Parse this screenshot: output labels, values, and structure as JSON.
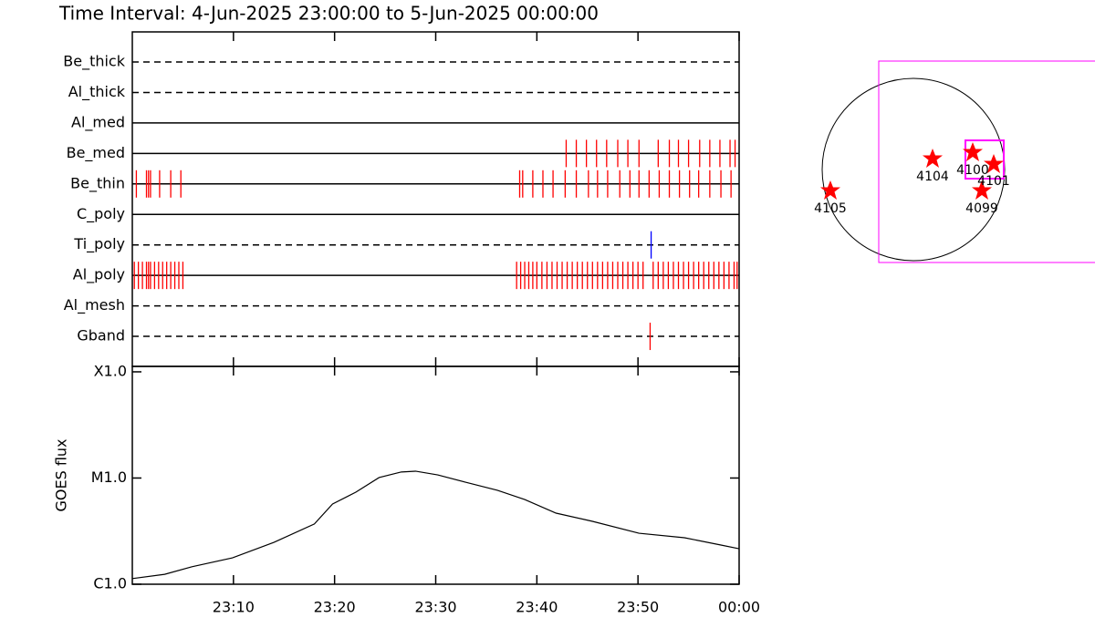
{
  "chart_data": [
    {
      "type": "timeline",
      "title": "Time Interval:  4-Jun-2025 23:00:00 to  5-Jun-2025 00:00:00",
      "xlim": [
        0,
        60
      ],
      "rows": [
        {
          "name": "Be_thick",
          "line": "dashed",
          "color": "#ff0000",
          "events": []
        },
        {
          "name": "Al_thick",
          "line": "dashed",
          "color": "#ff0000",
          "events": []
        },
        {
          "name": "Al_med",
          "line": "solid",
          "color": "#ff0000",
          "events": []
        },
        {
          "name": "Be_med",
          "line": "solid",
          "color": "#ff0000",
          "events": [
            42.9,
            43.9,
            44.9,
            45.9,
            46.9,
            48.0,
            49.0,
            50.1,
            52.0,
            53.1,
            54.0,
            55.0,
            56.1,
            57.1,
            58.1,
            59.1,
            59.6
          ]
        },
        {
          "name": "Be_thin",
          "line": "solid",
          "color": "#ff0000",
          "events": [
            0.4,
            1.4,
            1.6,
            1.8,
            2.7,
            3.8,
            4.8,
            38.3,
            38.6,
            39.6,
            40.6,
            41.6,
            42.8,
            43.9,
            45.1,
            46.0,
            47.0,
            48.2,
            49.2,
            50.1,
            51.1,
            52.1,
            53.1,
            54.1,
            55.1,
            56.0,
            57.1,
            58.2,
            59.2
          ]
        },
        {
          "name": "C_poly",
          "line": "solid",
          "color": "#ff0000",
          "events": []
        },
        {
          "name": "Ti_poly",
          "line": "dashed",
          "color": "#0000ff",
          "events": [
            51.3
          ]
        },
        {
          "name": "Al_poly",
          "line": "solid",
          "color": "#ff0000",
          "events": [
            0.2,
            0.6,
            1.0,
            1.4,
            1.6,
            1.8,
            2.2,
            2.6,
            3.0,
            3.4,
            3.8,
            4.2,
            4.6,
            5.0,
            38.0,
            38.4,
            38.8,
            39.2,
            39.6,
            40.0,
            40.5,
            41.0,
            41.5,
            42.0,
            42.5,
            43.0,
            43.5,
            44.0,
            44.5,
            45.0,
            45.5,
            46.0,
            46.5,
            47.0,
            47.5,
            48.0,
            48.5,
            49.0,
            49.5,
            50.0,
            50.5,
            51.5,
            52.0,
            52.5,
            53.0,
            53.5,
            54.0,
            54.5,
            55.0,
            55.5,
            56.0,
            56.5,
            57.0,
            57.5,
            58.0,
            58.5,
            59.0,
            59.5,
            59.8
          ]
        },
        {
          "name": "Al_mesh",
          "line": "dashed",
          "color": "#ff0000",
          "events": []
        },
        {
          "name": "Gband",
          "line": "dashed",
          "color": "#ff0000",
          "events": [
            51.2
          ]
        }
      ]
    },
    {
      "type": "line",
      "ylabel": "GOES flux",
      "log": true,
      "color": "#000000",
      "x": [
        0,
        3.2,
        5.9,
        9.9,
        14.0,
        18.0,
        19.8,
        22.1,
        24.4,
        26.6,
        28.0,
        30.2,
        32.9,
        36.1,
        38.8,
        41.9,
        45.5,
        50.1,
        54.6,
        58.2,
        60
      ],
      "values": [
        1.13e-06,
        1.24e-06,
        1.46e-06,
        1.77e-06,
        2.48e-06,
        3.69e-06,
        5.69e-06,
        7.36e-06,
        1.01e-05,
        1.14e-05,
        1.16e-05,
        1.07e-05,
        9.15e-06,
        7.66e-06,
        6.28e-06,
        4.67e-06,
        3.91e-06,
        3.02e-06,
        2.74e-06,
        2.34e-06,
        2.16e-06
      ],
      "xlim": [
        0,
        60
      ],
      "xticks": [
        {
          "value": 10,
          "label": "23:10"
        },
        {
          "value": 20,
          "label": "23:20"
        },
        {
          "value": 30,
          "label": "23:30"
        },
        {
          "value": 40,
          "label": "23:40"
        },
        {
          "value": 50,
          "label": "23:50"
        },
        {
          "value": 60,
          "label": "00:00"
        }
      ],
      "ylim": [
        1e-06,
        0.0001125
      ],
      "yticks": [
        {
          "value": 1e-06,
          "label": "C1.0"
        },
        {
          "value": 1e-05,
          "label": "M1.0"
        },
        {
          "value": 0.0001,
          "label": "X1.0"
        }
      ]
    }
  ],
  "map": {
    "regions": [
      {
        "label": "4105"
      },
      {
        "label": "4104"
      },
      {
        "label": "4100"
      },
      {
        "label": "4101"
      },
      {
        "label": "4099"
      }
    ]
  }
}
